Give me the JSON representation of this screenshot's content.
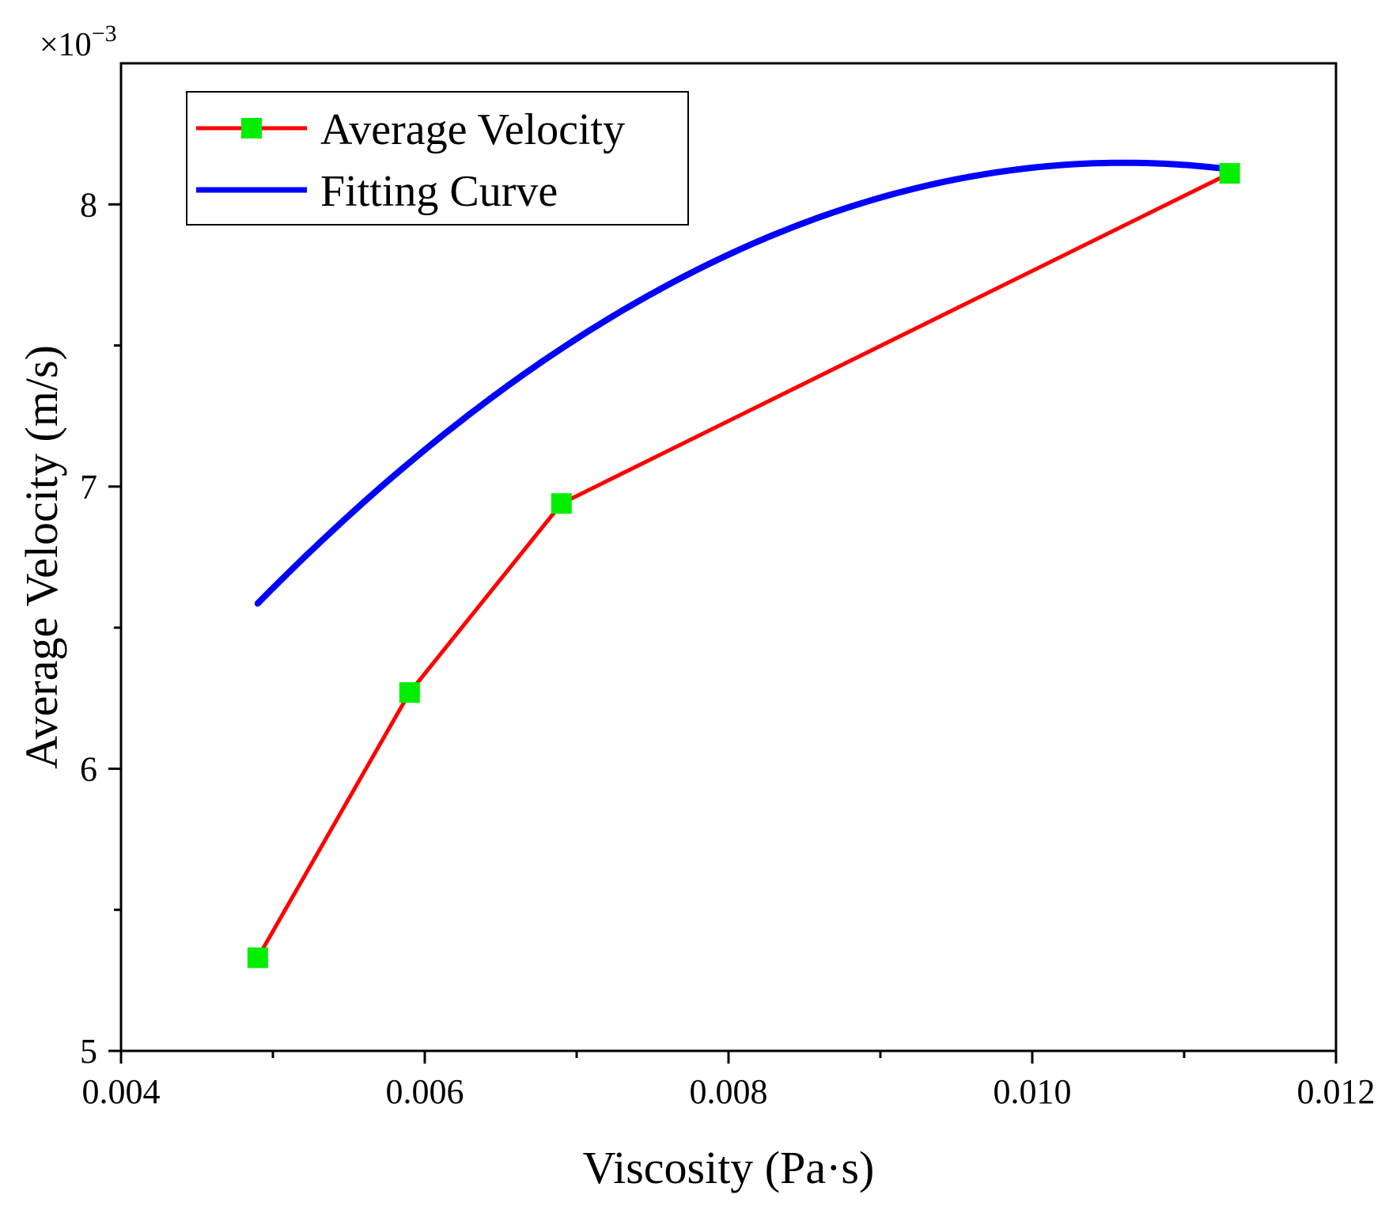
{
  "chart_data": {
    "type": "line",
    "xlabel": "Viscosity (Pa·s)",
    "ylabel": "Average Velocity (m/s)",
    "y_multiplier": "×10",
    "y_multiplier_exp": "−3",
    "xlim": [
      0.004,
      0.012
    ],
    "ylim": [
      5,
      8.5
    ],
    "x_ticks": [
      0.004,
      0.006,
      0.008,
      0.01,
      0.012
    ],
    "x_tick_labels": [
      "0.004",
      "0.006",
      "0.008",
      "0.010",
      "0.012"
    ],
    "x_minor_ticks": [
      0.005,
      0.007,
      0.009,
      0.011
    ],
    "y_ticks": [
      5,
      6,
      7,
      8
    ],
    "y_tick_labels": [
      "5",
      "6",
      "7",
      "8"
    ],
    "y_minor_ticks": [
      5.5,
      6.5,
      7.5
    ],
    "legend_position": "top-left",
    "series": [
      {
        "name": "Average Velocity",
        "style": "line-with-square-markers",
        "line_color": "#ff0000",
        "marker_color": "#00ee00",
        "x": [
          0.0049,
          0.0059,
          0.0069,
          0.0113
        ],
        "y": [
          5.33,
          6.27,
          6.94,
          8.11
        ]
      },
      {
        "name": "Fitting Curve",
        "style": "line",
        "line_color": "#0000ff",
        "x_range": [
          0.0049,
          0.0113
        ],
        "quadratic_coeffs": [
          -48000,
          1018,
          2.75
        ]
      }
    ]
  }
}
